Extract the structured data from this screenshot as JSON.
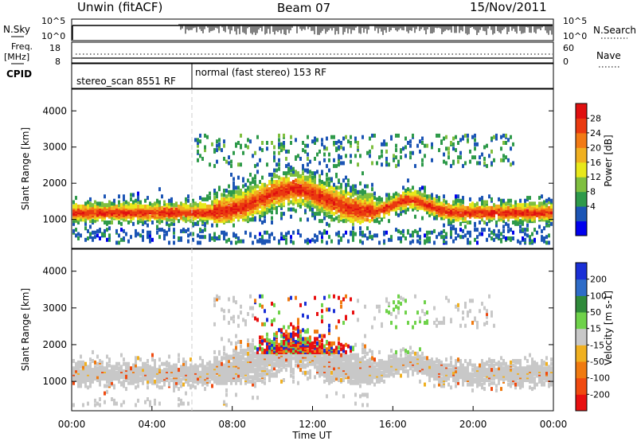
{
  "header": {
    "station": "Unwin (fitACF)",
    "beam": "Beam 07",
    "date": "15/Nov/2011"
  },
  "panels": {
    "nsky_label": "N.Sky",
    "nsky_ticks": [
      "10^5",
      "10^0"
    ],
    "nsearch_label": "N.Search",
    "nsearch_ticks": [
      "10^5",
      "10^0"
    ],
    "freq_label_1": "Freq.",
    "freq_label_2": "[MHz]",
    "freq_ticks": [
      "18",
      "8"
    ],
    "nave_label": "Nave",
    "nave_ticks": [
      "60",
      "0"
    ],
    "cpid_label": "CPID",
    "cpid_segments": [
      {
        "label": "stereo_scan 8551 RF",
        "start_hour": 0,
        "end_hour": 6
      },
      {
        "label": "normal (fast stereo) 153 RF",
        "start_hour": 6,
        "end_hour": 24
      }
    ]
  },
  "x_axis": {
    "label": "Time UT",
    "ticks": [
      "00:00",
      "04:00",
      "08:00",
      "12:00",
      "16:00",
      "20:00",
      "00:00"
    ]
  },
  "chart_data": [
    {
      "type": "heatmap",
      "quantity": "Power",
      "ylabel": "Slant Range [km]",
      "yticks": [
        "1000",
        "2000",
        "3000",
        "4000"
      ],
      "ylim": [
        200,
        4600
      ],
      "xlim_hours": [
        0,
        24
      ],
      "colorbar_label": "Power [dB]",
      "colorbar_ticks": [
        "28",
        "24",
        "20",
        "16",
        "12",
        "8",
        "4"
      ],
      "colorbar_colors": [
        "#0000ee",
        "#1c55b5",
        "#2e9a4a",
        "#7fbf3f",
        "#e8e81a",
        "#f0b020",
        "#f27a14",
        "#ea3a10",
        "#e01010"
      ],
      "dominant_feature": "Backscatter band near 1000-1300 km range throughout the day, rising to 1800-2400 km around 10-14 UT"
    },
    {
      "type": "heatmap",
      "quantity": "Velocity",
      "ylabel": "Slant Range [km]",
      "yticks": [
        "1000",
        "2000",
        "3000",
        "4000"
      ],
      "ylim": [
        200,
        4600
      ],
      "xlim_hours": [
        0,
        24
      ],
      "colorbar_label": "Velocity [m s-1]",
      "colorbar_ticks": [
        "200",
        "100",
        "50",
        "15",
        "-15",
        "-50",
        "-100",
        "-200"
      ],
      "colorbar_colors": [
        "#1a2fd6",
        "#2e6cc8",
        "#2f8a3a",
        "#6fd24a",
        "#c8c8c8",
        "#f0b020",
        "#f07a10",
        "#f04a10",
        "#e81010"
      ],
      "dominant_feature": "Ground scatter (grey) band near 1000-1400 km; mixed positive and negative velocities 1800-2400 km around 10-14 UT"
    }
  ],
  "colors": {
    "ground_scatter": "#c8c8c8",
    "dashed_line": "#cccccc"
  }
}
